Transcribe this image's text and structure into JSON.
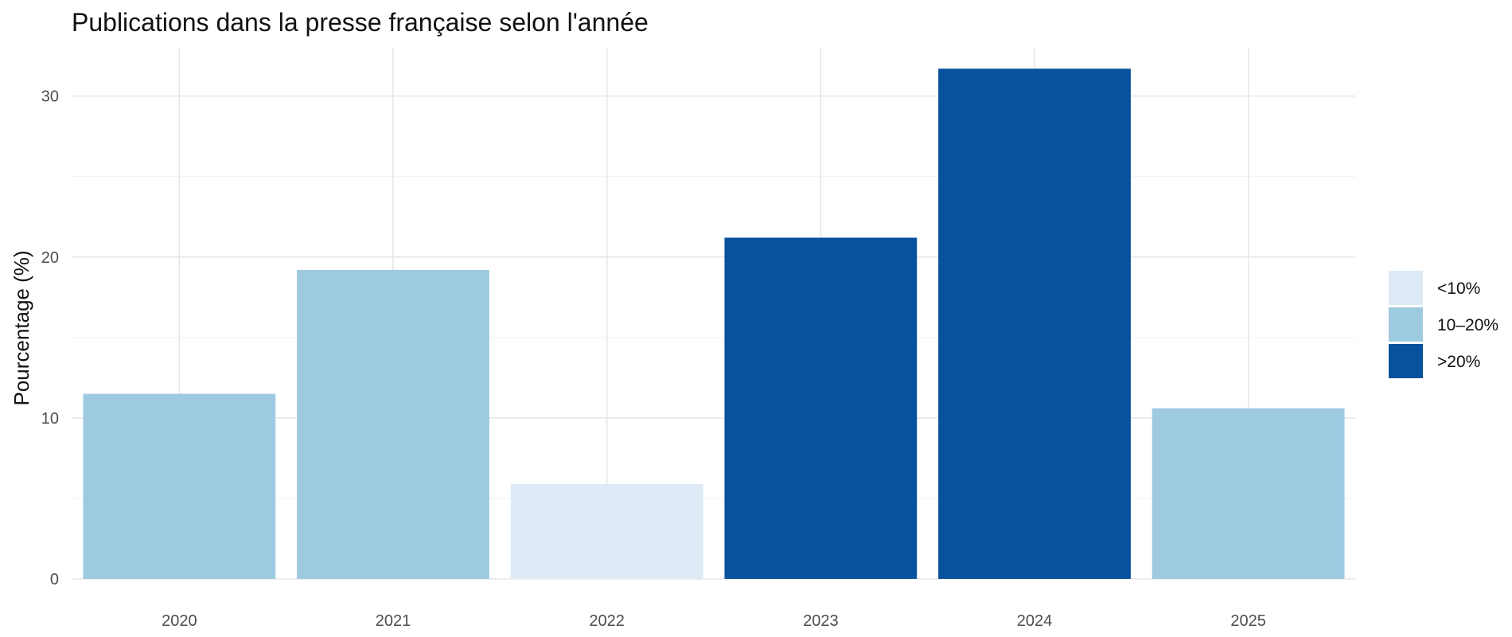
{
  "chart_data": {
    "type": "bar",
    "title": "Publications dans la presse française selon l'année",
    "xlabel": "",
    "ylabel": "Pourcentage (%)",
    "categories": [
      "2020",
      "2021",
      "2022",
      "2023",
      "2024",
      "2025"
    ],
    "values": [
      11.5,
      19.2,
      5.9,
      21.2,
      31.7,
      10.6
    ],
    "bar_groups": [
      "10–20%",
      "10–20%",
      "<10%",
      ">20%",
      ">20%",
      "10–20%"
    ],
    "ylim": [
      0,
      33
    ],
    "yticks": [
      0,
      10,
      20,
      30
    ],
    "grid": true,
    "legend": {
      "position": "right",
      "entries": [
        {
          "label": "<10%",
          "color": "#deebf7"
        },
        {
          "label": "10–20%",
          "color": "#9ecae1"
        },
        {
          "label": ">20%",
          "color": "#08519c"
        }
      ]
    }
  }
}
